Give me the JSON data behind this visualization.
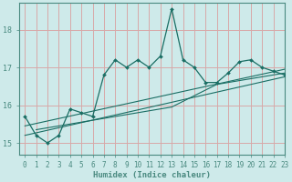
{
  "xlabel": "Humidex (Indice chaleur)",
  "background_color": "#ceeaea",
  "grid_color": "#d8a8a8",
  "line_color": "#1a6e64",
  "axis_color": "#4a8a80",
  "xlim": [
    -0.5,
    23
  ],
  "ylim": [
    14.7,
    18.7
  ],
  "yticks": [
    15,
    16,
    17,
    18
  ],
  "xticks": [
    0,
    1,
    2,
    3,
    4,
    5,
    6,
    7,
    8,
    9,
    10,
    11,
    12,
    13,
    14,
    15,
    16,
    17,
    18,
    19,
    20,
    21,
    22,
    23
  ],
  "main_x": [
    0,
    1,
    2,
    3,
    4,
    5,
    6,
    7,
    8,
    9,
    10,
    11,
    12,
    13,
    14,
    15,
    16,
    17,
    18,
    19,
    20,
    21,
    22,
    23
  ],
  "main_y": [
    15.7,
    15.2,
    15.0,
    15.2,
    15.9,
    15.8,
    15.7,
    16.8,
    17.2,
    17.0,
    17.2,
    17.0,
    17.3,
    18.55,
    17.2,
    17.0,
    16.6,
    16.6,
    16.85,
    17.15,
    17.2,
    17.0,
    16.9,
    16.8
  ],
  "line2_x": [
    0,
    23
  ],
  "line2_y": [
    15.45,
    16.95
  ],
  "line3_x": [
    0,
    23
  ],
  "line3_y": [
    15.2,
    16.75
  ],
  "line4_x": [
    1,
    13,
    17,
    23
  ],
  "line4_y": [
    15.35,
    15.95,
    16.55,
    16.85
  ],
  "figwidth": 3.2,
  "figheight": 2.0,
  "dpi": 100
}
